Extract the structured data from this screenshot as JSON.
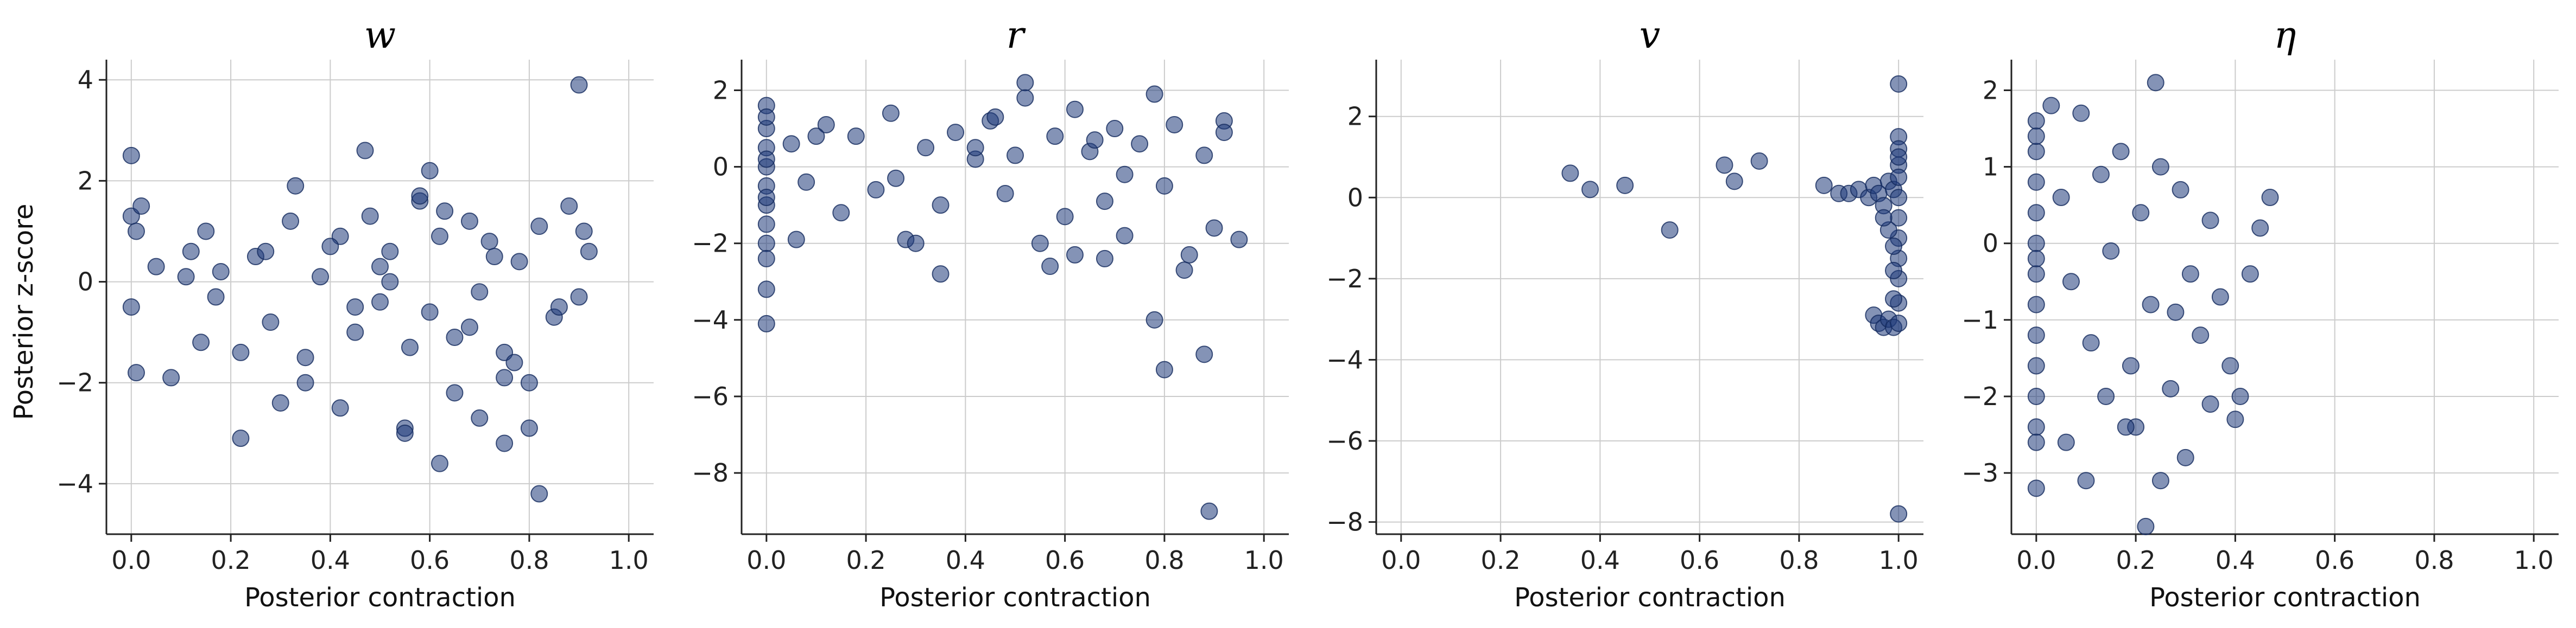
{
  "figure": {
    "shared_ylabel": "Posterior z-score"
  },
  "colors": {
    "points": "#1f3a7a",
    "grid": "#cccccc",
    "axis": "#222222"
  },
  "chart_data": [
    {
      "type": "scatter",
      "title": "w",
      "xlabel": "Posterior contraction",
      "ylabel": "Posterior z-score",
      "xlim": [
        -0.05,
        1.05
      ],
      "ylim": [
        -5.0,
        4.4
      ],
      "xticks": [
        0.0,
        0.2,
        0.4,
        0.6,
        0.8,
        1.0
      ],
      "xtick_labels": [
        "0.0",
        "0.2",
        "0.4",
        "0.6",
        "0.8",
        "1.0"
      ],
      "yticks": [
        -4,
        -2,
        0,
        2,
        4
      ],
      "ytick_labels": [
        "−4",
        "−2",
        "0",
        "2",
        "4"
      ],
      "grid": true,
      "points": {
        "x": [
          0.0,
          0.0,
          0.01,
          0.02,
          0.0,
          0.01,
          0.05,
          0.08,
          0.12,
          0.15,
          0.18,
          0.22,
          0.25,
          0.28,
          0.32,
          0.35,
          0.38,
          0.42,
          0.45,
          0.48,
          0.5,
          0.52,
          0.55,
          0.58,
          0.6,
          0.62,
          0.65,
          0.68,
          0.7,
          0.72,
          0.75,
          0.78,
          0.8,
          0.82,
          0.85,
          0.88,
          0.9,
          0.92,
          0.62,
          0.55,
          0.75,
          0.8,
          0.82,
          0.9,
          0.6,
          0.47,
          0.22,
          0.42,
          0.3,
          0.35,
          0.65,
          0.7,
          0.75,
          0.52,
          0.58,
          0.45,
          0.4,
          0.5,
          0.33,
          0.27,
          0.17,
          0.14,
          0.11,
          0.68,
          0.73,
          0.77,
          0.86,
          0.91,
          0.56,
          0.63
        ],
        "y": [
          2.5,
          1.3,
          1.0,
          1.5,
          -0.5,
          -1.8,
          0.3,
          -1.9,
          0.6,
          1.0,
          0.2,
          -1.4,
          0.5,
          -0.8,
          1.2,
          -1.5,
          0.1,
          0.9,
          -0.5,
          1.3,
          -0.4,
          0.6,
          -2.9,
          1.6,
          -0.6,
          0.9,
          -1.1,
          1.2,
          -0.2,
          0.8,
          -1.9,
          0.4,
          -2.0,
          1.1,
          -0.7,
          1.5,
          -0.3,
          0.6,
          -3.6,
          -3.0,
          -3.2,
          -2.9,
          -4.2,
          3.9,
          2.2,
          2.6,
          -3.1,
          -2.5,
          -2.4,
          -2.0,
          -2.2,
          -2.7,
          -1.4,
          0.0,
          1.7,
          -1.0,
          0.7,
          0.3,
          1.9,
          0.6,
          -0.3,
          -1.2,
          0.1,
          -0.9,
          0.5,
          -1.6,
          -0.5,
          1.0,
          -1.3,
          1.4
        ]
      }
    },
    {
      "type": "scatter",
      "title": "r",
      "xlabel": "Posterior contraction",
      "ylabel": "",
      "xlim": [
        -0.05,
        1.05
      ],
      "ylim": [
        -9.6,
        2.8
      ],
      "xticks": [
        0.0,
        0.2,
        0.4,
        0.6,
        0.8,
        1.0
      ],
      "xtick_labels": [
        "0.0",
        "0.2",
        "0.4",
        "0.6",
        "0.8",
        "1.0"
      ],
      "yticks": [
        -8,
        -6,
        -4,
        -2,
        0,
        2
      ],
      "ytick_labels": [
        "−8",
        "−6",
        "−4",
        "−2",
        "0",
        "2"
      ],
      "grid": true,
      "points": {
        "x": [
          0.0,
          0.0,
          0.0,
          0.0,
          0.0,
          0.0,
          0.0,
          0.0,
          0.0,
          0.0,
          0.0,
          0.0,
          0.0,
          0.0,
          0.05,
          0.08,
          0.12,
          0.15,
          0.18,
          0.22,
          0.25,
          0.28,
          0.32,
          0.35,
          0.38,
          0.42,
          0.45,
          0.48,
          0.5,
          0.52,
          0.55,
          0.58,
          0.6,
          0.62,
          0.65,
          0.68,
          0.7,
          0.72,
          0.75,
          0.78,
          0.8,
          0.82,
          0.85,
          0.88,
          0.9,
          0.92,
          0.95,
          0.52,
          0.78,
          0.8,
          0.88,
          0.89,
          0.3,
          0.57,
          0.62,
          0.68,
          0.35,
          0.42,
          0.72,
          0.92,
          0.06,
          0.1,
          0.26,
          0.46,
          0.66,
          0.84
        ],
        "y": [
          1.6,
          1.0,
          0.5,
          0.0,
          -0.5,
          -1.0,
          -1.5,
          -2.0,
          -2.4,
          -3.2,
          -4.1,
          1.3,
          0.2,
          -0.8,
          0.6,
          -0.4,
          1.1,
          -1.2,
          0.8,
          -0.6,
          1.4,
          -1.9,
          0.5,
          -1.0,
          0.9,
          0.2,
          1.2,
          -0.7,
          0.3,
          2.2,
          -2.0,
          0.8,
          -1.3,
          1.5,
          0.4,
          -0.9,
          1.0,
          -1.8,
          0.6,
          1.9,
          -0.5,
          1.1,
          -2.3,
          0.3,
          -1.6,
          1.2,
          -1.9,
          1.8,
          -4.0,
          -5.3,
          -4.9,
          -9.0,
          -2.0,
          -2.6,
          -2.3,
          -2.4,
          -2.8,
          0.5,
          -0.2,
          0.9,
          -1.9,
          0.8,
          -0.3,
          1.3,
          0.7,
          -2.7
        ]
      }
    },
    {
      "type": "scatter",
      "title": "v",
      "xlabel": "Posterior contraction",
      "ylabel": "",
      "xlim": [
        -0.05,
        1.05
      ],
      "ylim": [
        -8.3,
        3.4
      ],
      "xticks": [
        0.0,
        0.2,
        0.4,
        0.6,
        0.8,
        1.0
      ],
      "xtick_labels": [
        "0.0",
        "0.2",
        "0.4",
        "0.6",
        "0.8",
        "1.0"
      ],
      "yticks": [
        -8,
        -6,
        -4,
        -2,
        0,
        2
      ],
      "ytick_labels": [
        "−8",
        "−6",
        "−4",
        "−2",
        "0",
        "2"
      ],
      "grid": true,
      "points": {
        "x": [
          0.34,
          0.38,
          0.45,
          0.54,
          0.65,
          0.67,
          0.72,
          0.85,
          0.88,
          0.9,
          0.92,
          0.94,
          0.95,
          0.96,
          0.97,
          0.98,
          0.99,
          1.0,
          1.0,
          1.0,
          1.0,
          1.0,
          1.0,
          1.0,
          1.0,
          1.0,
          1.0,
          1.0,
          1.0,
          0.95,
          0.96,
          0.97,
          0.98,
          0.99,
          0.99,
          0.98,
          0.97,
          0.99,
          1.0,
          1.0,
          0.99
        ],
        "y": [
          0.6,
          0.2,
          0.3,
          -0.8,
          0.8,
          0.4,
          0.9,
          0.3,
          0.1,
          0.1,
          0.2,
          0.0,
          0.3,
          0.1,
          -0.2,
          0.4,
          0.2,
          2.8,
          1.5,
          1.2,
          0.8,
          0.5,
          0.0,
          -0.5,
          -1.0,
          -1.5,
          -2.0,
          -2.6,
          -7.8,
          -2.9,
          -3.1,
          -3.2,
          -3.0,
          -3.2,
          -1.2,
          -0.8,
          -0.5,
          -2.5,
          -3.1,
          1.0,
          -1.8
        ]
      }
    },
    {
      "type": "scatter",
      "title": "η",
      "xlabel": "Posterior contraction",
      "ylabel": "",
      "xlim": [
        -0.05,
        1.05
      ],
      "ylim": [
        -3.8,
        2.4
      ],
      "xticks": [
        0.0,
        0.2,
        0.4,
        0.6,
        0.8,
        1.0
      ],
      "xtick_labels": [
        "0.0",
        "0.2",
        "0.4",
        "0.6",
        "0.8",
        "1.0"
      ],
      "yticks": [
        -3,
        -2,
        -1,
        0,
        1,
        2
      ],
      "ytick_labels": [
        "−3",
        "−2",
        "−1",
        "0",
        "1",
        "2"
      ],
      "grid": true,
      "points": {
        "x": [
          0.0,
          0.0,
          0.0,
          0.0,
          0.0,
          0.0,
          0.0,
          0.0,
          0.0,
          0.0,
          0.0,
          0.0,
          0.0,
          0.0,
          0.0,
          0.03,
          0.05,
          0.07,
          0.09,
          0.11,
          0.13,
          0.15,
          0.17,
          0.19,
          0.21,
          0.23,
          0.25,
          0.27,
          0.29,
          0.31,
          0.33,
          0.35,
          0.37,
          0.39,
          0.41,
          0.43,
          0.45,
          0.47,
          0.24,
          0.22,
          0.2,
          0.1,
          0.25,
          0.35,
          0.4,
          0.3,
          0.14,
          0.18,
          0.06,
          0.28
        ],
        "y": [
          1.6,
          1.2,
          0.8,
          0.4,
          0.0,
          -0.4,
          -0.8,
          -1.2,
          -1.6,
          -2.0,
          -2.4,
          -2.6,
          -3.2,
          1.4,
          -0.2,
          1.8,
          0.6,
          -0.5,
          1.7,
          -1.3,
          0.9,
          -0.1,
          1.2,
          -1.6,
          0.4,
          -0.8,
          1.0,
          -1.9,
          0.7,
          -0.4,
          -1.2,
          0.3,
          -0.7,
          -1.6,
          -2.0,
          -0.4,
          0.2,
          0.6,
          2.1,
          -3.7,
          -2.4,
          -3.1,
          -3.1,
          -2.1,
          -2.3,
          -2.8,
          -2.0,
          -2.4,
          -2.6,
          -0.9
        ]
      }
    }
  ]
}
